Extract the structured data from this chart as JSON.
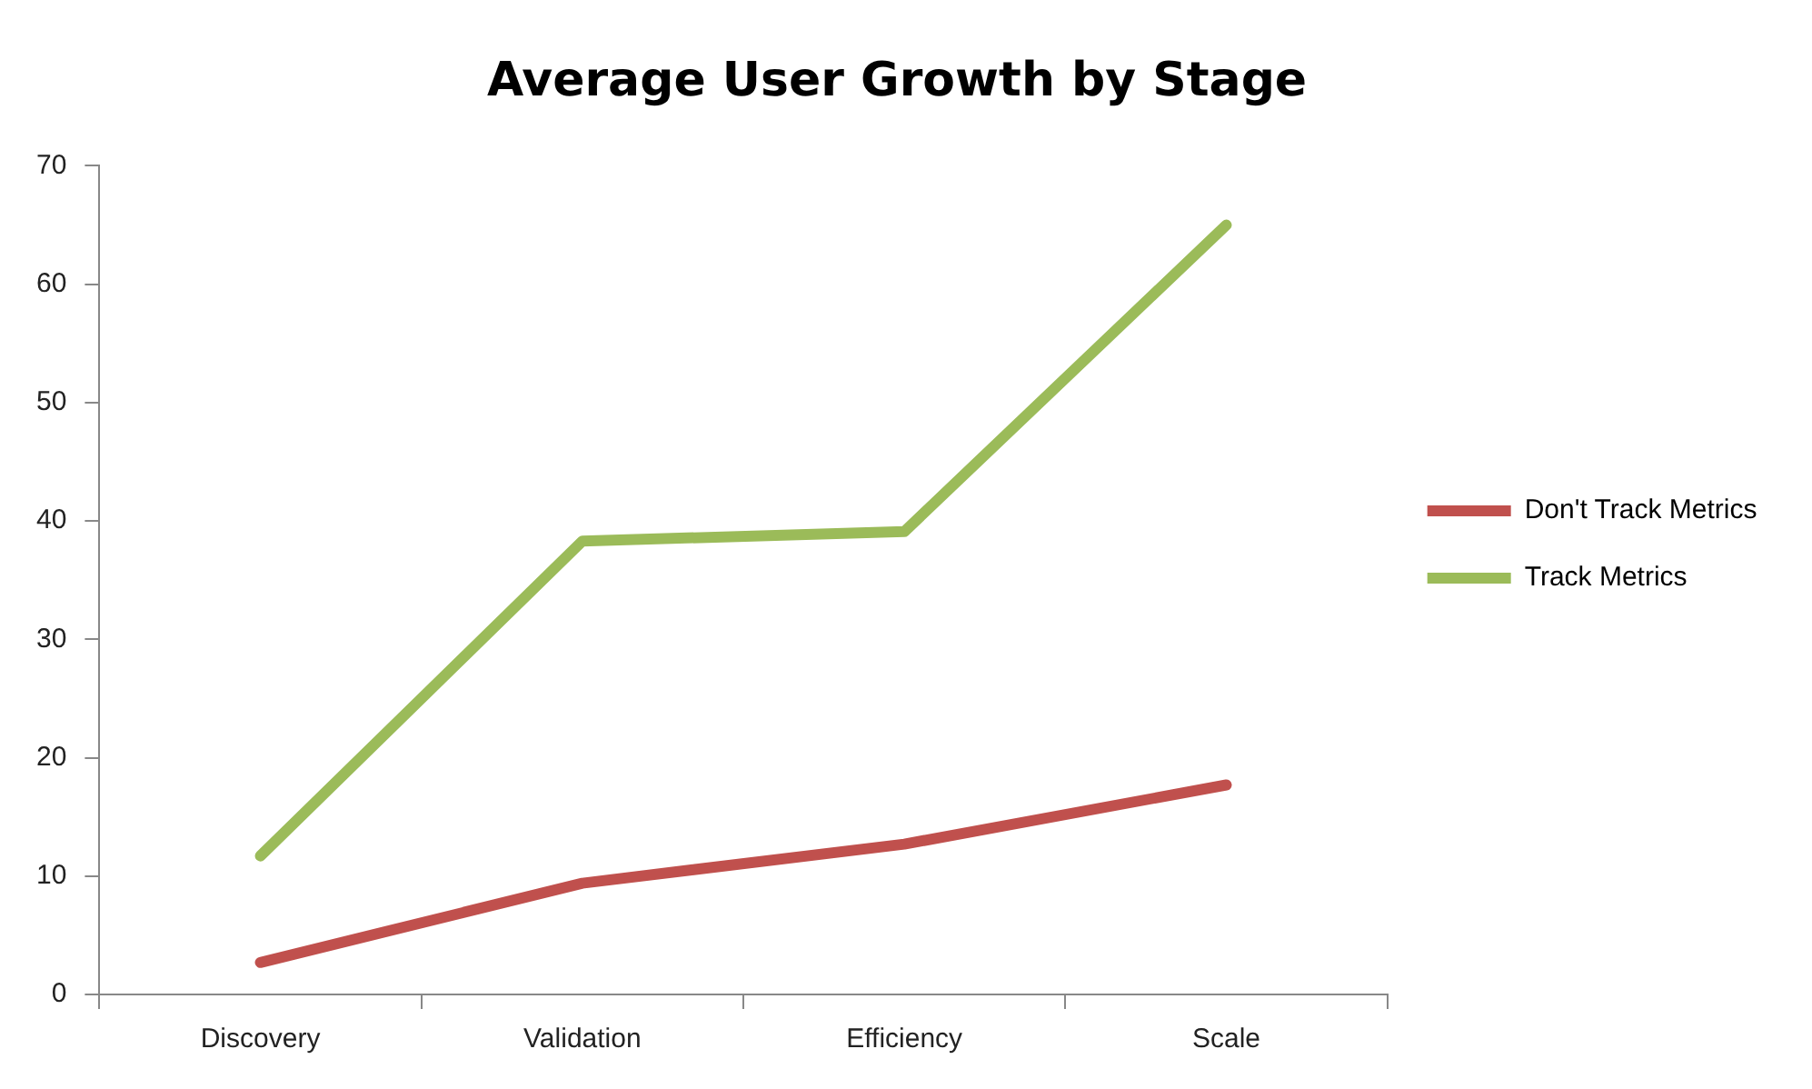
{
  "chart_data": {
    "type": "line",
    "title": "Average User Growth by Stage",
    "categories": [
      "Discovery",
      "Validation",
      "Efficiency",
      "Scale"
    ],
    "series": [
      {
        "name": "Don't Track Metrics",
        "color": "#c0504d",
        "values": [
          2.7,
          9.4,
          12.7,
          17.7
        ]
      },
      {
        "name": "Track Metrics",
        "color": "#9bbb59",
        "values": [
          11.7,
          38.3,
          39.1,
          65
        ]
      }
    ],
    "ylim": [
      0,
      70
    ],
    "yticks": [
      0,
      10,
      20,
      30,
      40,
      50,
      60,
      70
    ],
    "grid": false,
    "legend": "right",
    "marker": "none",
    "line_style": "solid"
  }
}
